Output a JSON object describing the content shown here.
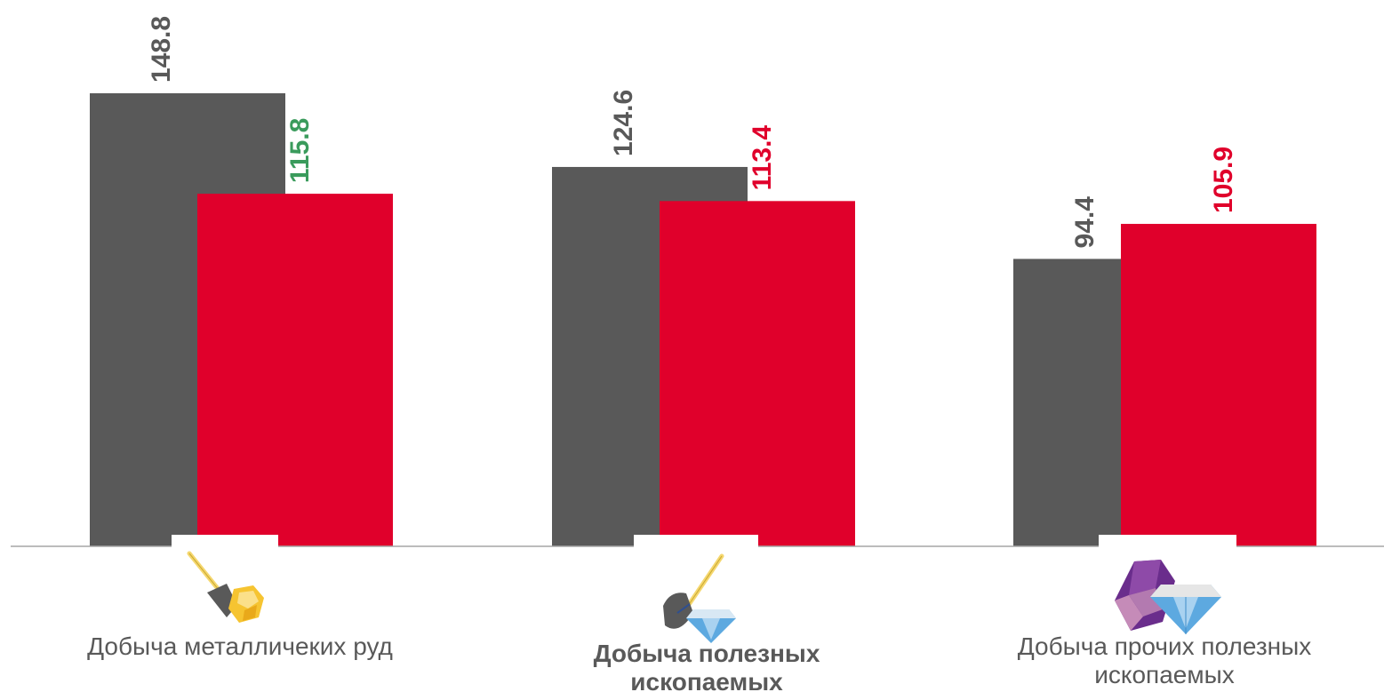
{
  "colors": {
    "series_a": "#595959",
    "series_b": "#E0002B",
    "label_a": "#595959",
    "label_b_default": "#E0002B",
    "label_b_green": "#3A9B5C",
    "axis": "#A6A6A6"
  },
  "chart_data": {
    "type": "bar",
    "categories": [
      "Добыча металличеких руд",
      "Добыча полезных ископаемых",
      "Добыча прочих полезных ископаемых"
    ],
    "series": [
      {
        "values": [
          148.8,
          124.6,
          94.4
        ]
      },
      {
        "values": [
          115.8,
          113.4,
          105.9
        ]
      }
    ],
    "value_label_colors_series_b": [
      "green",
      "red",
      "red"
    ],
    "ylim": [
      0,
      150
    ],
    "grid": false,
    "legend": "none",
    "icons": [
      "shovel-gold-nugget-icon",
      "shovel-diamond-icon",
      "crystals-diamond-icon"
    ]
  }
}
